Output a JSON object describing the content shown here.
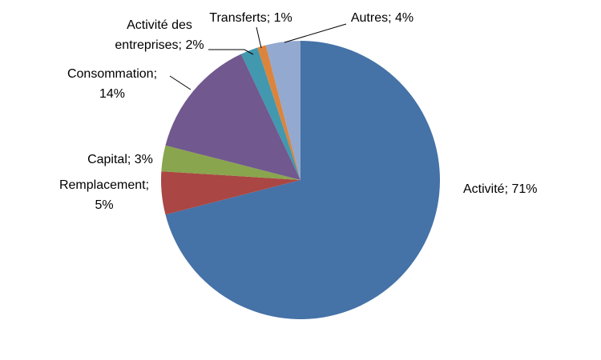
{
  "chart_data": {
    "type": "pie",
    "title": "",
    "start_angle_deg": 0,
    "direction": "clockwise",
    "legend": "none",
    "slices": [
      {
        "label": "Activité",
        "value": 71,
        "display": "Activité; 71%",
        "color": "#4572A7"
      },
      {
        "label": "Remplacement",
        "value": 5,
        "display_lines": [
          "Remplacement;",
          "5%"
        ],
        "color": "#AA4643"
      },
      {
        "label": "Capital",
        "value": 3,
        "display": "Capital; 3%",
        "color": "#89A54E"
      },
      {
        "label": "Consommation",
        "value": 14,
        "display_lines": [
          "Consommation;",
          "14%"
        ],
        "color": "#71588F"
      },
      {
        "label": "Activité des entreprises",
        "value": 2,
        "display_lines": [
          "Activité des",
          "entreprises; 2%"
        ],
        "color": "#4198AF"
      },
      {
        "label": "Transferts",
        "value": 1,
        "display": "Transferts; 1%",
        "color": "#DB843D"
      },
      {
        "label": "Autres",
        "value": 4,
        "display": "Autres; 4%",
        "color": "#93A9CF"
      }
    ]
  }
}
